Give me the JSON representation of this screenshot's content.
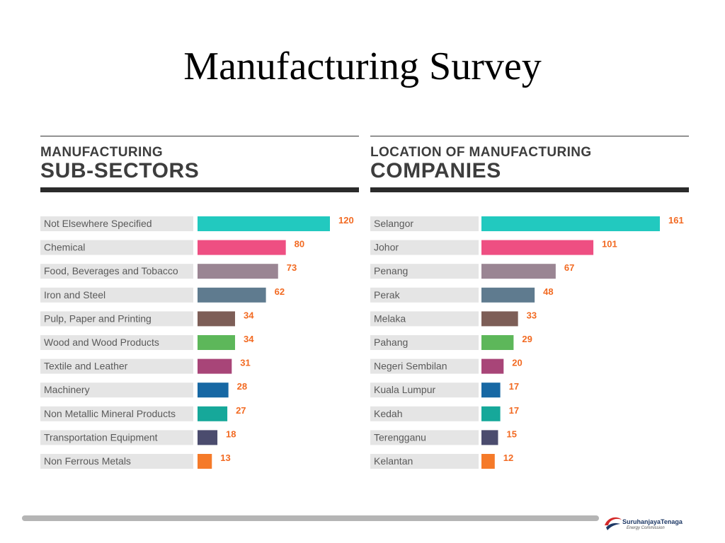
{
  "page": {
    "title": "Manufacturing Survey"
  },
  "chart_data": [
    {
      "type": "bar",
      "orientation": "horizontal",
      "title_small": "MANUFACTURING",
      "title_big": "SUB-SECTORS",
      "categories": [
        "Not Elsewhere Specified",
        "Chemical",
        "Food, Beverages and Tobacco",
        "Iron and Steel",
        "Pulp, Paper and Printing",
        "Wood and Wood Products",
        "Textile and Leather",
        "Machinery",
        "Non Metallic Mineral Products",
        "Transportation Equipment",
        "Non Ferrous Metals"
      ],
      "values": [
        120,
        80,
        73,
        62,
        34,
        34,
        31,
        28,
        27,
        18,
        13
      ],
      "colors": [
        "#22c9bf",
        "#ee4f82",
        "#9a8593",
        "#5f7b8f",
        "#7d5e57",
        "#5db75a",
        "#a84578",
        "#1768a4",
        "#16a89a",
        "#4b4c6e",
        "#f57a29"
      ],
      "xlim": [
        0,
        120
      ]
    },
    {
      "type": "bar",
      "orientation": "horizontal",
      "title_small": "LOCATION OF MANUFACTURING",
      "title_big": "COMPANIES",
      "categories": [
        "Selangor",
        "Johor",
        "Penang",
        "Perak",
        "Melaka",
        "Pahang",
        "Negeri Sembilan",
        "Kuala Lumpur",
        "Kedah",
        "Terengganu",
        "Kelantan"
      ],
      "values": [
        161,
        101,
        67,
        48,
        33,
        29,
        20,
        17,
        17,
        15,
        12
      ],
      "colors": [
        "#22c9bf",
        "#ee4f82",
        "#9a8593",
        "#5f7b8f",
        "#7d5e57",
        "#5db75a",
        "#a84578",
        "#1768a4",
        "#16a89a",
        "#4b4c6e",
        "#f57a29"
      ],
      "xlim": [
        0,
        161
      ]
    }
  ],
  "style": {
    "label_bg": "#e5e5e5",
    "label_color": "#5a5a5a",
    "value_color": "#f26a22"
  },
  "footer": {
    "logo_name": "SuruhanjayaTenaga",
    "logo_sub": "Energy Commission"
  }
}
